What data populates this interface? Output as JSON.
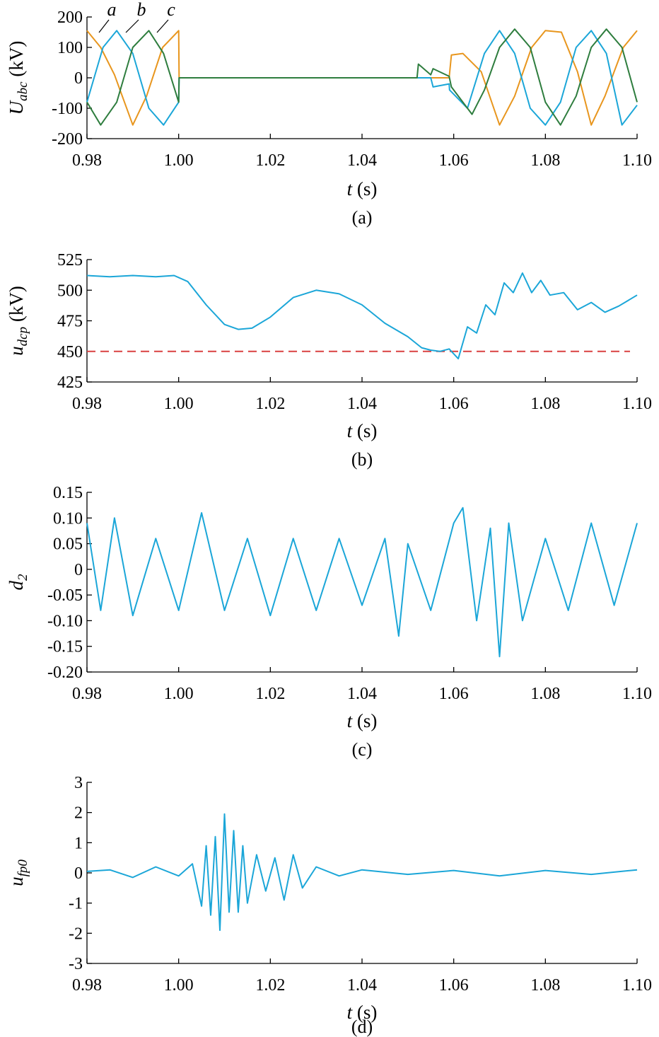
{
  "colors": {
    "phase_a": "#E8961E",
    "phase_b": "#1BA6D8",
    "phase_c": "#2E7D3E",
    "signal": "#1BA6D8",
    "threshold": "#D94040",
    "axis": "#000000"
  },
  "chart_data": [
    {
      "id": "a",
      "type": "line",
      "caption": "(a)",
      "ylabel_main": "U",
      "ylabel_sub": "abc",
      "ylabel_unit": " (kV)",
      "xlabel_var": "t",
      "xlabel_unit": " (s)",
      "xlim": [
        0.98,
        1.1
      ],
      "ylim": [
        -200,
        200
      ],
      "xticks": [
        0.98,
        1.0,
        1.02,
        1.04,
        1.06,
        1.08,
        1.1
      ],
      "xtick_labels": [
        "0.98",
        "1.00",
        "1.02",
        "1.04",
        "1.06",
        "1.08",
        "1.10"
      ],
      "yticks": [
        -200,
        -100,
        0,
        100,
        200
      ],
      "ytick_labels": [
        "-200",
        "-100",
        "0",
        "100",
        "200"
      ],
      "phase_labels": [
        "a",
        "b",
        "c"
      ],
      "series": [
        {
          "name": "a",
          "color_key": "phase_a",
          "x": [
            0.98,
            0.983,
            0.986,
            0.99,
            0.993,
            0.9965,
            1.0,
            1.0001,
            1.059,
            1.0595,
            1.062,
            1.066,
            1.07,
            1.0733,
            1.077,
            1.08,
            1.0835,
            1.087,
            1.09,
            1.093,
            1.097,
            1.1
          ],
          "y": [
            155,
            100,
            10,
            -155,
            -60,
            100,
            155,
            0,
            0,
            75,
            80,
            20,
            -155,
            -60,
            100,
            155,
            150,
            20,
            -155,
            -60,
            100,
            155
          ]
        },
        {
          "name": "b",
          "color_key": "phase_b",
          "x": [
            0.98,
            0.9835,
            0.9865,
            0.99,
            0.9935,
            0.9967,
            1.0,
            1.0001,
            1.055,
            1.0555,
            1.059,
            1.0591,
            1.063,
            1.0667,
            1.07,
            1.0733,
            1.0767,
            1.08,
            1.0833,
            1.0867,
            1.09,
            1.0933,
            1.0967,
            1.1
          ],
          "y": [
            -80,
            100,
            155,
            80,
            -100,
            -155,
            -80,
            0,
            0,
            -30,
            -20,
            -40,
            -100,
            80,
            155,
            80,
            -100,
            -155,
            -80,
            100,
            155,
            80,
            -155,
            -90
          ]
        },
        {
          "name": "c",
          "color_key": "phase_c",
          "x": [
            0.98,
            0.983,
            0.9865,
            0.99,
            0.9935,
            0.9967,
            1.0,
            1.0001,
            1.052,
            1.0523,
            1.055,
            1.0555,
            1.059,
            1.0595,
            1.064,
            1.0667,
            1.07,
            1.0733,
            1.0767,
            1.08,
            1.0833,
            1.0867,
            1.09,
            1.0933,
            1.0967,
            1.1
          ],
          "y": [
            -80,
            -155,
            -80,
            100,
            155,
            80,
            -80,
            0,
            0,
            45,
            10,
            30,
            5,
            -30,
            -120,
            -40,
            100,
            160,
            100,
            -80,
            -155,
            -60,
            100,
            160,
            100,
            -80
          ]
        }
      ]
    },
    {
      "id": "b",
      "type": "line",
      "caption": "(b)",
      "ylabel_main": "u",
      "ylabel_sub": "dcp",
      "ylabel_unit": " (kV)",
      "xlabel_var": "t",
      "xlabel_unit": " (s)",
      "xlim": [
        0.98,
        1.1
      ],
      "ylim": [
        425,
        525
      ],
      "xticks": [
        0.98,
        1.0,
        1.02,
        1.04,
        1.06,
        1.08,
        1.1
      ],
      "xtick_labels": [
        "0.98",
        "1.00",
        "1.02",
        "1.04",
        "1.06",
        "1.08",
        "1.10"
      ],
      "yticks": [
        425,
        450,
        475,
        500,
        525
      ],
      "ytick_labels": [
        "425",
        "450",
        "475",
        "500",
        "525"
      ],
      "threshold": 450,
      "series": [
        {
          "name": "",
          "color_key": "signal",
          "x": [
            0.98,
            0.985,
            0.99,
            0.995,
            0.999,
            1.002,
            1.006,
            1.01,
            1.013,
            1.016,
            1.02,
            1.025,
            1.03,
            1.035,
            1.04,
            1.045,
            1.05,
            1.053,
            1.055,
            1.057,
            1.059,
            1.061,
            1.063,
            1.065,
            1.067,
            1.069,
            1.071,
            1.073,
            1.075,
            1.077,
            1.079,
            1.081,
            1.084,
            1.087,
            1.09,
            1.093,
            1.096,
            1.1
          ],
          "y": [
            512,
            511,
            512,
            511,
            512,
            507,
            488,
            472,
            468,
            469,
            478,
            494,
            500,
            497,
            488,
            473,
            462,
            453,
            451,
            450,
            452,
            444,
            470,
            465,
            488,
            480,
            506,
            498,
            514,
            498,
            508,
            496,
            498,
            484,
            490,
            482,
            487,
            496
          ]
        }
      ]
    },
    {
      "id": "c",
      "type": "line",
      "caption": "(c)",
      "ylabel_main": "d",
      "ylabel_sub": "2",
      "ylabel_unit": "",
      "xlabel_var": "t",
      "xlabel_unit": " (s)",
      "xlim": [
        0.98,
        1.1
      ],
      "ylim": [
        -0.2,
        0.15
      ],
      "xticks": [
        0.98,
        1.0,
        1.02,
        1.04,
        1.06,
        1.08,
        1.1
      ],
      "xtick_labels": [
        "0.98",
        "1.00",
        "1.02",
        "1.04",
        "1.06",
        "1.08",
        "1.10"
      ],
      "yticks": [
        -0.2,
        -0.15,
        -0.1,
        -0.05,
        0,
        0.05,
        0.1,
        0.15
      ],
      "ytick_labels": [
        "-0.20",
        "-0.15",
        "-0.10",
        "-0.05",
        "0",
        "0.05",
        "0.10",
        "0.15"
      ],
      "series": [
        {
          "name": "",
          "color_key": "signal",
          "x": [
            0.98,
            0.983,
            0.986,
            0.99,
            0.995,
            1.0,
            1.005,
            1.01,
            1.015,
            1.02,
            1.025,
            1.03,
            1.035,
            1.04,
            1.045,
            1.048,
            1.05,
            1.055,
            1.06,
            1.062,
            1.065,
            1.068,
            1.07,
            1.072,
            1.075,
            1.08,
            1.085,
            1.09,
            1.095,
            1.1
          ],
          "y": [
            0.09,
            -0.08,
            0.1,
            -0.09,
            0.06,
            -0.08,
            0.11,
            -0.08,
            0.06,
            -0.09,
            0.06,
            -0.08,
            0.06,
            -0.07,
            0.06,
            -0.13,
            0.05,
            -0.08,
            0.09,
            0.12,
            -0.1,
            0.08,
            -0.17,
            0.09,
            -0.1,
            0.06,
            -0.08,
            0.09,
            -0.07,
            0.09
          ]
        }
      ]
    },
    {
      "id": "d",
      "type": "line",
      "caption": "(d)",
      "ylabel_main": "u",
      "ylabel_sub": "fp0",
      "ylabel_unit": "",
      "xlabel_var": "t",
      "xlabel_unit": " (s)",
      "xlim": [
        0.98,
        1.1
      ],
      "ylim": [
        -3,
        3
      ],
      "xticks": [
        0.98,
        1.0,
        1.02,
        1.04,
        1.06,
        1.08,
        1.1
      ],
      "xtick_labels": [
        "0.98",
        "1.00",
        "1.02",
        "1.04",
        "1.06",
        "1.08",
        "1.10"
      ],
      "yticks": [
        -3,
        -2,
        -1,
        0,
        1,
        2,
        3
      ],
      "ytick_labels": [
        "-3",
        "-2",
        "-1",
        "0",
        "1",
        "2",
        "3"
      ],
      "series": [
        {
          "name": "",
          "color_key": "signal",
          "x": [
            0.98,
            0.985,
            0.99,
            0.995,
            1.0,
            1.003,
            1.005,
            1.006,
            1.007,
            1.008,
            1.009,
            1.01,
            1.011,
            1.012,
            1.013,
            1.014,
            1.015,
            1.017,
            1.019,
            1.021,
            1.023,
            1.025,
            1.027,
            1.03,
            1.035,
            1.04,
            1.05,
            1.06,
            1.07,
            1.08,
            1.09,
            1.1
          ],
          "y": [
            0.05,
            0.1,
            -0.15,
            0.2,
            -0.1,
            0.3,
            -1.1,
            0.9,
            -1.4,
            1.2,
            -1.9,
            1.95,
            -1.3,
            1.4,
            -1.3,
            0.9,
            -1.0,
            0.6,
            -0.6,
            0.5,
            -0.9,
            0.6,
            -0.5,
            0.2,
            -0.1,
            0.1,
            -0.05,
            0.08,
            -0.1,
            0.08,
            -0.05,
            0.1
          ]
        }
      ]
    }
  ]
}
